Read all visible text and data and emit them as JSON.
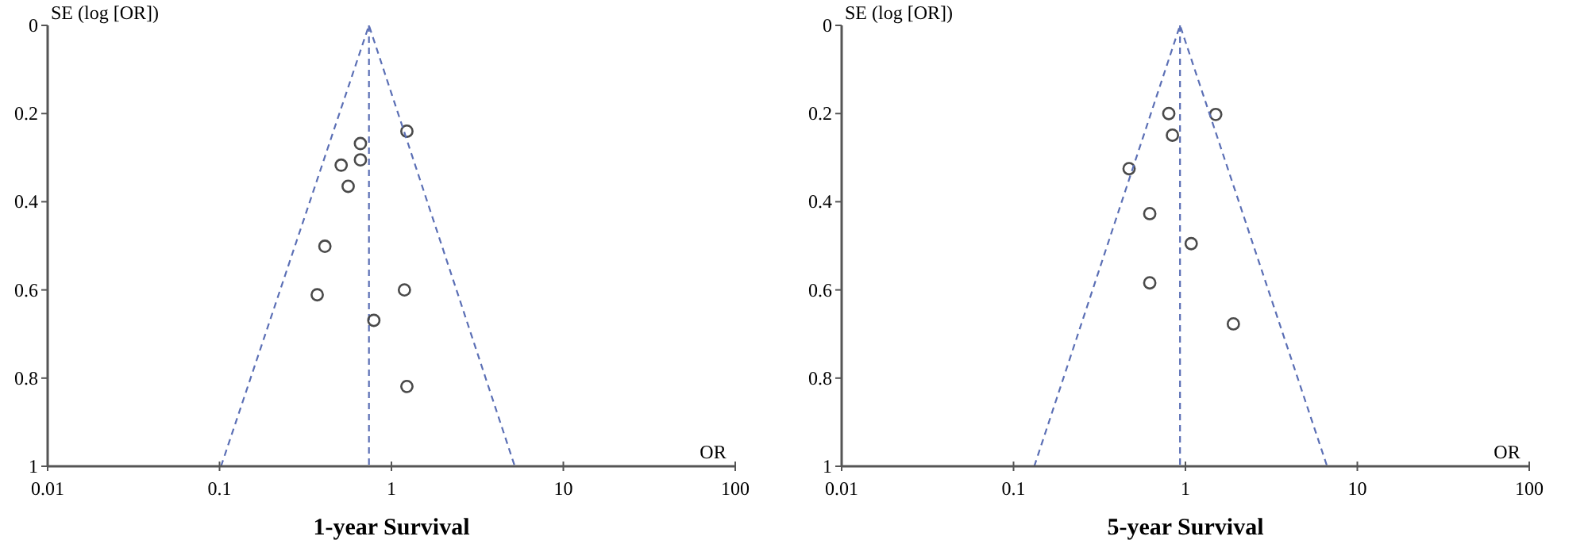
{
  "chart_data": [
    {
      "type": "scatter",
      "title": "1-year Survival",
      "xlabel": "OR",
      "ylabel": "SE (log [OR])",
      "log": "x",
      "xlim": [
        0.01,
        100
      ],
      "xticks": [
        0.01,
        0.1,
        1,
        10,
        100
      ],
      "ylim": [
        1,
        0
      ],
      "yticks": [
        0,
        0.2,
        0.4,
        0.6,
        0.8,
        1
      ],
      "series": [
        {
          "marker": "circle",
          "color": "#4a4a4a",
          "x": [
            1.23,
            0.66,
            0.66,
            0.51,
            0.56,
            0.41,
            0.37,
            1.19,
            0.79,
            1.23
          ],
          "values": [
            0.24,
            0.268,
            0.305,
            0.317,
            0.365,
            0.501,
            0.611,
            0.6,
            0.669,
            0.819
          ]
        },
        {
          "type": "line",
          "marker": "none",
          "line_style": "dashed",
          "color": "#5b6fb5",
          "x": [
            0.102,
            0.74,
            5.22
          ],
          "values": [
            1,
            0,
            1
          ]
        }
      ],
      "ref_lines": [
        {
          "axis": "x",
          "value": 0.74,
          "color": "#5b6fb5",
          "line_style": "dashed"
        }
      ]
    },
    {
      "type": "scatter",
      "title": "5-year Survival",
      "xlabel": "OR",
      "ylabel": "SE (log [OR])",
      "log": "x",
      "xlim": [
        0.01,
        100
      ],
      "xticks": [
        0.01,
        0.1,
        1,
        10,
        100
      ],
      "ylim": [
        1,
        0
      ],
      "yticks": [
        0,
        0.2,
        0.4,
        0.6,
        0.8,
        1
      ],
      "series": [
        {
          "marker": "circle",
          "color": "#4a4a4a",
          "x": [
            0.8,
            1.5,
            0.84,
            0.47,
            0.62,
            1.08,
            0.62,
            1.9
          ],
          "values": [
            0.2,
            0.202,
            0.249,
            0.325,
            0.427,
            0.495,
            0.584,
            0.677
          ]
        },
        {
          "type": "line",
          "marker": "none",
          "line_style": "dashed",
          "color": "#5b6fb5",
          "x": [
            0.132,
            0.93,
            6.67
          ],
          "values": [
            1,
            0,
            1
          ]
        }
      ],
      "ref_lines": [
        {
          "axis": "x",
          "value": 0.93,
          "color": "#5b6fb5",
          "line_style": "dashed"
        }
      ]
    }
  ]
}
